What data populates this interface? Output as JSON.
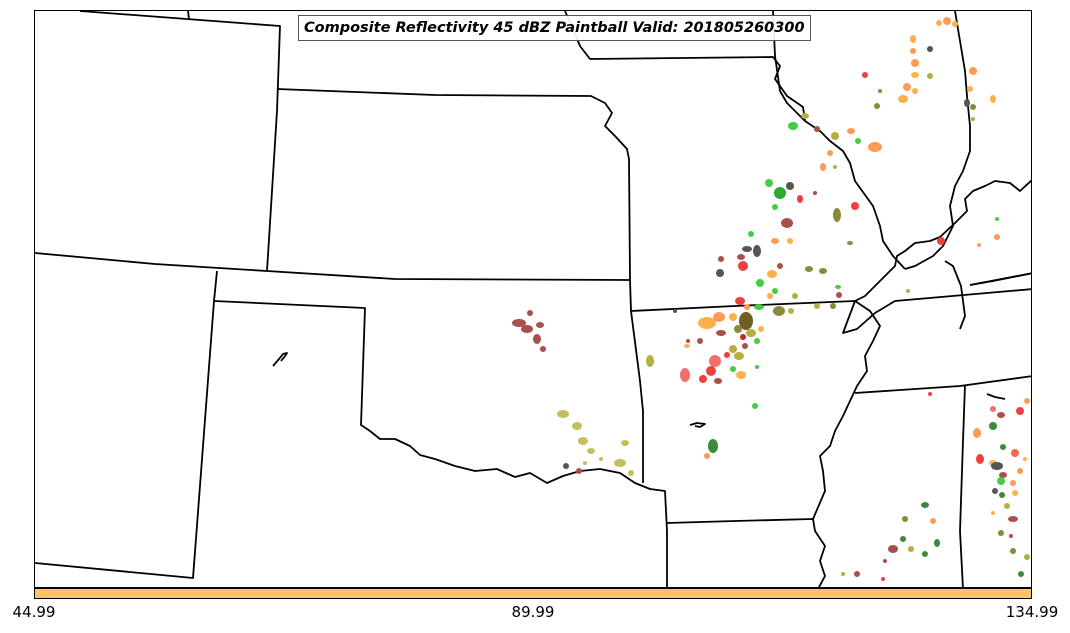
{
  "map": {
    "title": "Composite Reflectivity 45 dBZ Paintball Valid: 201805260300",
    "boundary_color": "#000000"
  },
  "colorbar": {
    "color": "#ffc266",
    "ticks": {
      "min": "44.99",
      "mid": "89.99",
      "max": "134.99"
    }
  },
  "paintball_colors": {
    "red": "#ee4040",
    "light_red": "#f07070",
    "brown": "#a8504a",
    "orange": "#ff9a55",
    "light_orange": "#ffb04a",
    "olive": "#b2b040",
    "dark_olive": "#8a8a3a",
    "green": "#44cc44",
    "dark_green": "#3d8a3d",
    "dark_gray": "#555555"
  }
}
